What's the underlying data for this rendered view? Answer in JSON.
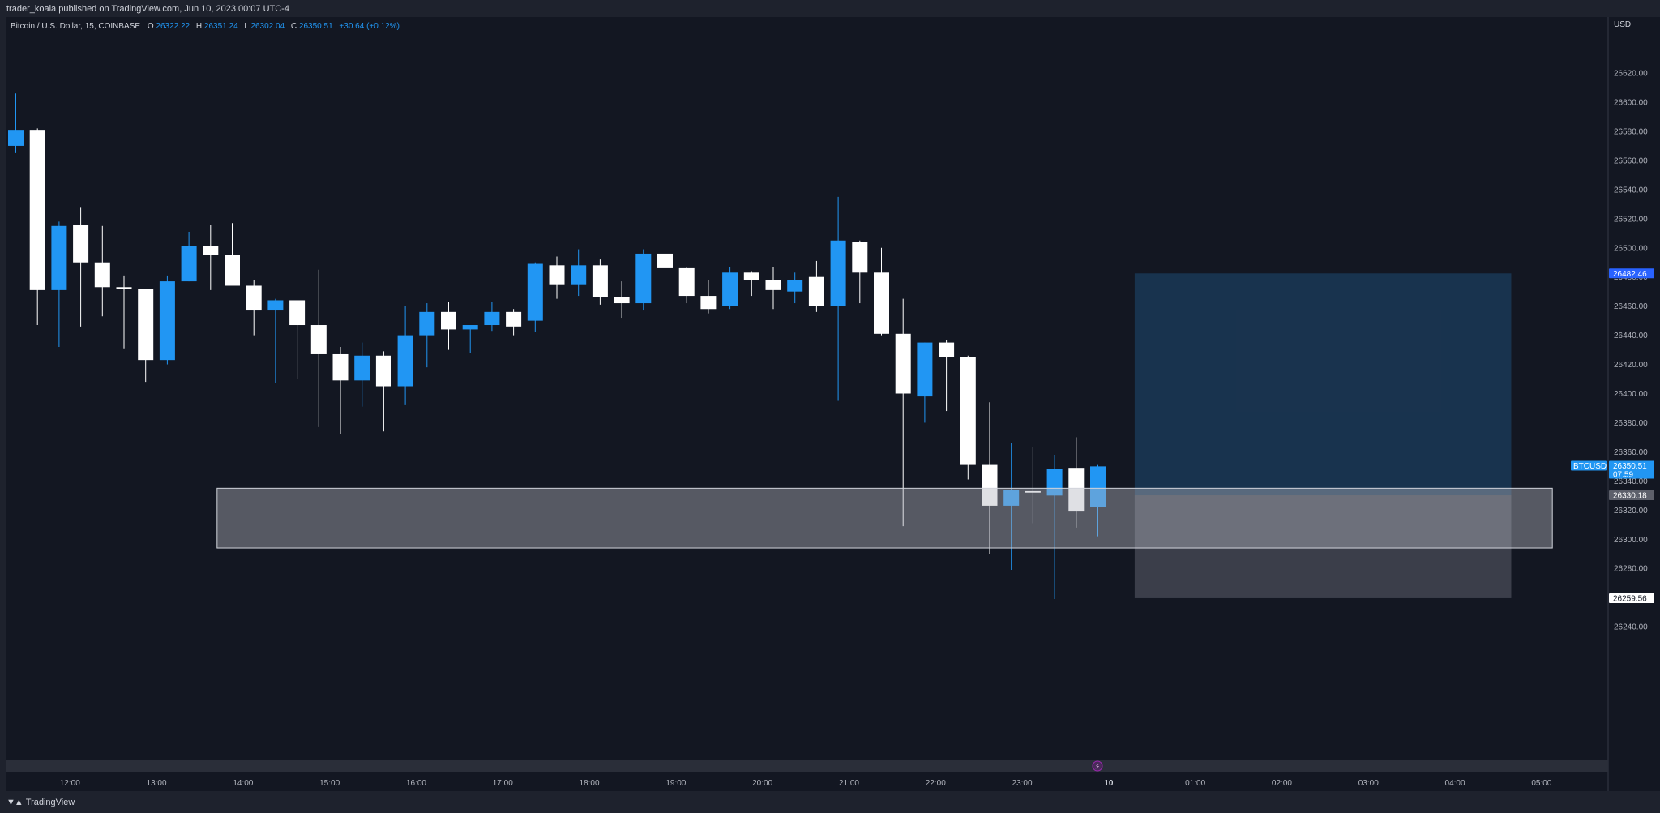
{
  "header": {
    "published": "trader_koala published on TradingView.com, Jun 10, 2023 00:07 UTC-4"
  },
  "legend": {
    "symbol": "Bitcoin / U.S. Dollar, 15, COINBASE",
    "o_label": "O",
    "o": "26322.22",
    "h_label": "H",
    "h": "26351.24",
    "l_label": "L",
    "l": "26302.04",
    "c_label": "C",
    "c": "26350.51",
    "change": "+30.64 (+0.12%)"
  },
  "footer": {
    "brand": "TradingView",
    "brand_icon": "tradingview-logo-icon"
  },
  "colors": {
    "background": "#131722",
    "frame": "#1e222d",
    "up": "#2196f3",
    "down": "#ffffff",
    "zone": "#9598a1",
    "target": "#1e4a72",
    "stop": "#787b86"
  },
  "chart_data": {
    "type": "candlestick",
    "currency": "USD",
    "y_ticks": [
      "26620.00",
      "26600.00",
      "26580.00",
      "26560.00",
      "26540.00",
      "26520.00",
      "26500.00",
      "26480.00",
      "26460.00",
      "26440.00",
      "26420.00",
      "26400.00",
      "26380.00",
      "26360.00",
      "26340.00",
      "26320.00",
      "26300.00",
      "26280.00",
      "26260.00",
      "26240.00"
    ],
    "x_ticks": [
      {
        "label": "12:00",
        "bar": 2.5
      },
      {
        "label": "13:00",
        "bar": 6.5
      },
      {
        "label": "14:00",
        "bar": 10.5
      },
      {
        "label": "15:00",
        "bar": 14.5
      },
      {
        "label": "16:00",
        "bar": 18.5
      },
      {
        "label": "17:00",
        "bar": 22.5
      },
      {
        "label": "18:00",
        "bar": 26.5
      },
      {
        "label": "19:00",
        "bar": 30.5
      },
      {
        "label": "20:00",
        "bar": 34.5
      },
      {
        "label": "21:00",
        "bar": 38.5
      },
      {
        "label": "22:00",
        "bar": 42.5
      },
      {
        "label": "23:00",
        "bar": 46.5
      },
      {
        "label": "10",
        "bar": 50.5,
        "bold": true
      },
      {
        "label": "01:00",
        "bar": 54.5
      },
      {
        "label": "02:00",
        "bar": 58.5
      },
      {
        "label": "03:00",
        "bar": 62.5
      },
      {
        "label": "04:00",
        "bar": 66.5
      },
      {
        "label": "05:00",
        "bar": 70.5
      }
    ],
    "candles": [
      {
        "o": 26570,
        "h": 26606,
        "l": 26565,
        "c": 26581
      },
      {
        "o": 26581,
        "h": 26582,
        "l": 26447,
        "c": 26471
      },
      {
        "o": 26471,
        "h": 26518,
        "l": 26432,
        "c": 26515
      },
      {
        "o": 26516,
        "h": 26528,
        "l": 26446,
        "c": 26490
      },
      {
        "o": 26490,
        "h": 26515,
        "l": 26453,
        "c": 26473
      },
      {
        "o": 26473,
        "h": 26481,
        "l": 26431,
        "c": 26472
      },
      {
        "o": 26472,
        "h": 26472,
        "l": 26408,
        "c": 26423
      },
      {
        "o": 26423,
        "h": 26481,
        "l": 26420,
        "c": 26477
      },
      {
        "o": 26477,
        "h": 26511,
        "l": 26477,
        "c": 26501
      },
      {
        "o": 26501,
        "h": 26516,
        "l": 26471,
        "c": 26495
      },
      {
        "o": 26495,
        "h": 26517,
        "l": 26475,
        "c": 26474
      },
      {
        "o": 26474,
        "h": 26478,
        "l": 26440,
        "c": 26457
      },
      {
        "o": 26457,
        "h": 26465,
        "l": 26407,
        "c": 26464
      },
      {
        "o": 26464,
        "h": 26464,
        "l": 26410,
        "c": 26447
      },
      {
        "o": 26447,
        "h": 26485,
        "l": 26377,
        "c": 26427
      },
      {
        "o": 26427,
        "h": 26432,
        "l": 26372,
        "c": 26409
      },
      {
        "o": 26409,
        "h": 26435,
        "l": 26391,
        "c": 26426
      },
      {
        "o": 26426,
        "h": 26429,
        "l": 26374,
        "c": 26405
      },
      {
        "o": 26405,
        "h": 26460,
        "l": 26392,
        "c": 26440
      },
      {
        "o": 26440,
        "h": 26462,
        "l": 26418,
        "c": 26456
      },
      {
        "o": 26456,
        "h": 26463,
        "l": 26430,
        "c": 26444
      },
      {
        "o": 26444,
        "h": 26446,
        "l": 26428,
        "c": 26447
      },
      {
        "o": 26447,
        "h": 26463,
        "l": 26443,
        "c": 26456
      },
      {
        "o": 26456,
        "h": 26458,
        "l": 26440,
        "c": 26446
      },
      {
        "o": 26450,
        "h": 26490,
        "l": 26442,
        "c": 26489
      },
      {
        "o": 26488,
        "h": 26494,
        "l": 26465,
        "c": 26475
      },
      {
        "o": 26475,
        "h": 26499,
        "l": 26467,
        "c": 26488
      },
      {
        "o": 26488,
        "h": 26492,
        "l": 26461,
        "c": 26466
      },
      {
        "o": 26466,
        "h": 26477,
        "l": 26452,
        "c": 26462
      },
      {
        "o": 26462,
        "h": 26499,
        "l": 26457,
        "c": 26496
      },
      {
        "o": 26496,
        "h": 26499,
        "l": 26479,
        "c": 26486
      },
      {
        "o": 26486,
        "h": 26487,
        "l": 26462,
        "c": 26467
      },
      {
        "o": 26467,
        "h": 26478,
        "l": 26455,
        "c": 26458
      },
      {
        "o": 26460,
        "h": 26487,
        "l": 26458,
        "c": 26483
      },
      {
        "o": 26483,
        "h": 26484,
        "l": 26467,
        "c": 26478
      },
      {
        "o": 26478,
        "h": 26487,
        "l": 26458,
        "c": 26471
      },
      {
        "o": 26470,
        "h": 26483,
        "l": 26462,
        "c": 26478
      },
      {
        "o": 26480,
        "h": 26491,
        "l": 26456,
        "c": 26460
      },
      {
        "o": 26460,
        "h": 26535,
        "l": 26395,
        "c": 26505
      },
      {
        "o": 26504,
        "h": 26505,
        "l": 26462,
        "c": 26483
      },
      {
        "o": 26483,
        "h": 26500,
        "l": 26440,
        "c": 26441
      },
      {
        "o": 26441,
        "h": 26465,
        "l": 26309,
        "c": 26400
      },
      {
        "o": 26398,
        "h": 26435,
        "l": 26380,
        "c": 26435
      },
      {
        "o": 26435,
        "h": 26437,
        "l": 26388,
        "c": 26425
      },
      {
        "o": 26425,
        "h": 26426,
        "l": 26341,
        "c": 26351
      },
      {
        "o": 26351,
        "h": 26394,
        "l": 26290,
        "c": 26323
      },
      {
        "o": 26323,
        "h": 26366,
        "l": 26279,
        "c": 26334
      },
      {
        "o": 26333,
        "h": 26363,
        "l": 26311,
        "c": 26332
      },
      {
        "o": 26330,
        "h": 26358,
        "l": 26259,
        "c": 26348
      },
      {
        "o": 26349,
        "h": 26370,
        "l": 26308,
        "c": 26319
      },
      {
        "o": 26322,
        "h": 26351,
        "l": 26302,
        "c": 26350
      }
    ],
    "zone": {
      "x_start": 9.3,
      "x_end": 71.0,
      "y_top": 26335,
      "y_bottom": 26294
    },
    "position": {
      "x_start": 51.7,
      "x_end": 69.1,
      "entry": 26330.18,
      "target": 26482.46,
      "stop": 26259.56
    },
    "price_labels": {
      "target": "26482.46",
      "stop": "26259.56",
      "entry": "26330.18",
      "last": "26350.51",
      "countdown": "07:59",
      "symbol": "BTCUSD"
    }
  }
}
